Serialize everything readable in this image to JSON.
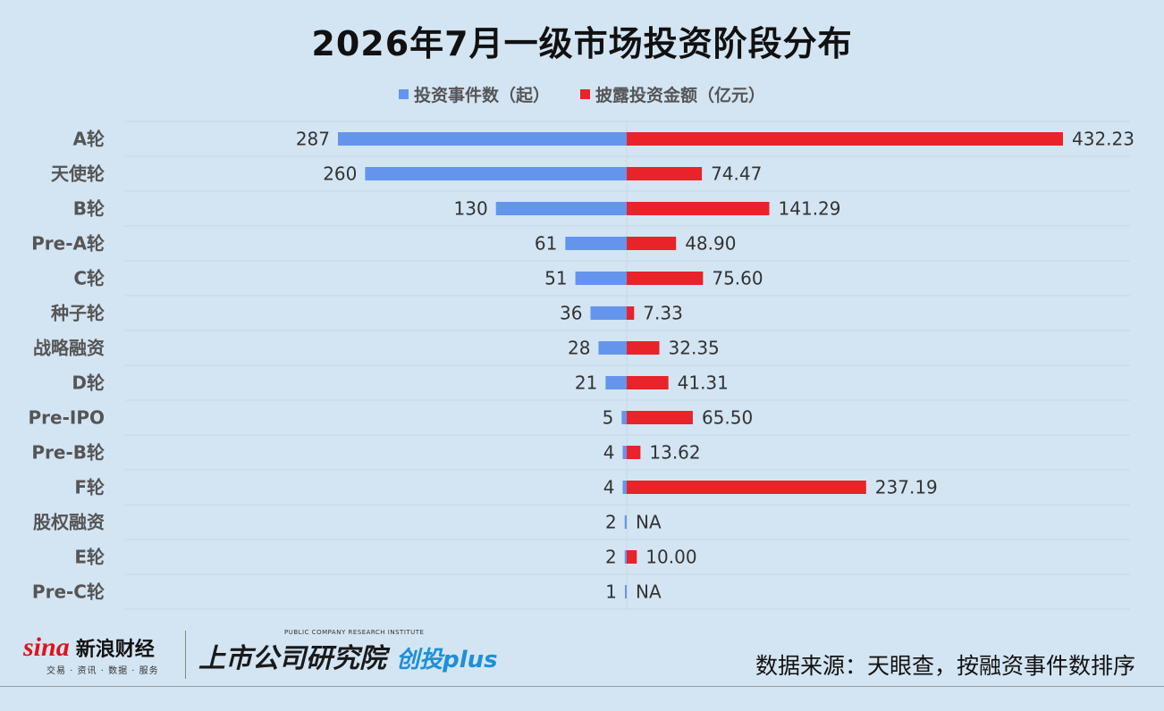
{
  "title": "2026年7月一级市场投资阶段分布",
  "legend": {
    "left": "投资事件数（起）",
    "right": "披露投资金额（亿元）"
  },
  "colors": {
    "left": "#6495ed",
    "right": "#e8232a",
    "grid": "#c4d8e8",
    "label": "#555555",
    "value": "#333333"
  },
  "chart_data": {
    "type": "bar",
    "orientation": "horizontal-butterfly",
    "categories": [
      "A轮",
      "天使轮",
      "B轮",
      "Pre-A轮",
      "C轮",
      "种子轮",
      "战略融资",
      "D轮",
      "Pre-IPO",
      "Pre-B轮",
      "F轮",
      "股权融资",
      "E轮",
      "Pre-C轮"
    ],
    "series": [
      {
        "name": "投资事件数（起）",
        "values": [
          287,
          260,
          130,
          61,
          51,
          36,
          28,
          21,
          5,
          4,
          4,
          2,
          2,
          1
        ],
        "labels": [
          "287",
          "260",
          "130",
          "61",
          "51",
          "36",
          "28",
          "21",
          "5",
          "4",
          "4",
          "2",
          "2",
          "1"
        ]
      },
      {
        "name": "披露投资金额（亿元）",
        "values": [
          432.23,
          74.47,
          141.29,
          48.9,
          75.6,
          7.33,
          32.35,
          41.31,
          65.5,
          13.62,
          237.19,
          null,
          10.0,
          null
        ],
        "labels": [
          "432.23",
          "74.47",
          "141.29",
          "48.90",
          "75.60",
          "7.33",
          "32.35",
          "41.31",
          "65.50",
          "13.62",
          "237.19",
          "NA",
          "10.00",
          "NA"
        ]
      }
    ]
  },
  "footer": {
    "sina_mark": "sina",
    "sina_brand": "新浪财经",
    "sina_sub": "交易 · 资讯 · 数据 · 服务",
    "research_top": "PUBLIC COMPANY RESEARCH INSTITUTE",
    "research_name": "上市公司研究院",
    "research_plus": "创投plus",
    "source": "数据来源：天眼查，按融资事件数排序"
  }
}
